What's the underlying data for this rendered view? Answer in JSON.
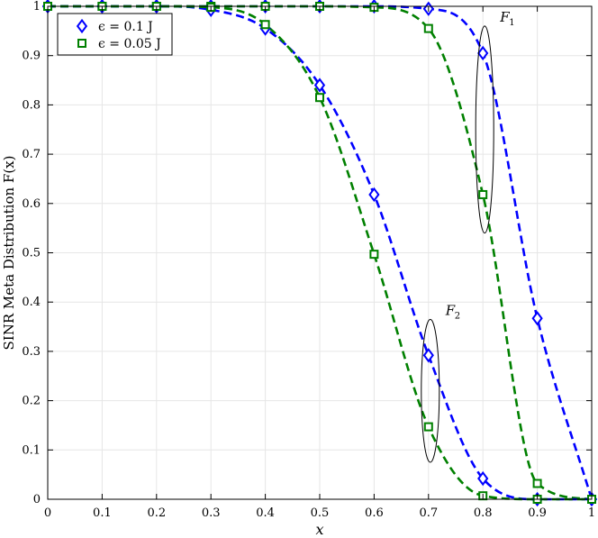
{
  "chart_data": {
    "type": "line",
    "xlabel": "x",
    "ylabel": "SINR Meta Distribution F(x)",
    "xlim": [
      0,
      1
    ],
    "ylim": [
      0,
      1
    ],
    "xticks": [
      "0",
      "0.1",
      "0.2",
      "0.3",
      "0.4",
      "0.5",
      "0.6",
      "0.7",
      "0.8",
      "0.9",
      "1"
    ],
    "yticks": [
      "0",
      "0.1",
      "0.2",
      "0.3",
      "0.4",
      "0.5",
      "0.6",
      "0.7",
      "0.8",
      "0.9",
      "1"
    ],
    "grid": true,
    "legend_position": "top-left",
    "x": [
      0,
      0.1,
      0.2,
      0.3,
      0.4,
      0.5,
      0.6,
      0.7,
      0.8,
      0.9,
      1.0
    ],
    "series": [
      {
        "name": "ϵ = 0.1 J",
        "curve": "F1",
        "color": "#0000ff",
        "marker": "diamond",
        "values": [
          1.0,
          1.0,
          1.0,
          1.0,
          1.0,
          1.0,
          1.0,
          0.995,
          0.905,
          0.367,
          0.0
        ]
      },
      {
        "name": "ϵ = 0.05 J",
        "curve": "F1",
        "color": "#008000",
        "marker": "square",
        "values": [
          1.0,
          1.0,
          1.0,
          1.0,
          1.0,
          1.0,
          0.998,
          0.955,
          0.618,
          0.032,
          0.0
        ]
      },
      {
        "name": "ϵ = 0.1 J",
        "curve": "F2",
        "color": "#0000ff",
        "marker": "diamond",
        "values": [
          1.0,
          1.0,
          1.0,
          0.993,
          0.955,
          0.84,
          0.618,
          0.292,
          0.042,
          0.0,
          0.0
        ]
      },
      {
        "name": "ϵ = 0.05 J",
        "curve": "F2",
        "color": "#008000",
        "marker": "square",
        "values": [
          1.0,
          1.0,
          1.0,
          0.998,
          0.963,
          0.815,
          0.497,
          0.147,
          0.007,
          0.0,
          0.0
        ]
      }
    ],
    "legend": [
      {
        "label": "ϵ = 0.1 J",
        "color": "#0000ff",
        "marker": "diamond"
      },
      {
        "label": "ϵ = 0.05 J",
        "color": "#008000",
        "marker": "square"
      }
    ],
    "annotations": [
      {
        "label": "F",
        "subscript": "1",
        "target_x": 0.8,
        "range": [
          0.54,
          0.96
        ]
      },
      {
        "label": "F",
        "subscript": "2",
        "target_x": 0.7,
        "range": [
          0.075,
          0.365
        ]
      }
    ]
  }
}
